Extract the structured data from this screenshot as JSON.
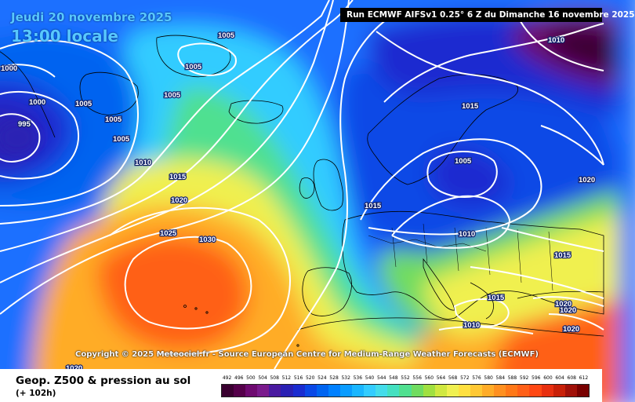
{
  "map": {
    "date_title": "Jeudi 20 novembre 2025",
    "time_title": "13:00 locale",
    "run_info": "Run ECMWF AIFSv1 0.25° 6 Z du Dimanche 16 novembre 2025",
    "copyright": "Copyright © 2025 Meteociel.fr - Source European Centre for Medium-Range Weather Forecasts (ECMWF)",
    "isobar_labels": [
      "1005",
      "1005",
      "1000",
      "1005",
      "1000",
      "1005",
      "995",
      "1005",
      "1005",
      "1010",
      "1015",
      "1020",
      "1025",
      "1030",
      "1010",
      "1015",
      "1005",
      "1015",
      "1010",
      "1020",
      "1015",
      "1015",
      "1020",
      "1020",
      "1010",
      "1020",
      "1020"
    ]
  },
  "footer": {
    "title": "Geop. Z500 & pression au sol",
    "subtitle": "(+ 102h)"
  },
  "legend": {
    "values": [
      "492",
      "496",
      "500",
      "504",
      "508",
      "512",
      "516",
      "520",
      "524",
      "528",
      "532",
      "536",
      "540",
      "544",
      "548",
      "552",
      "556",
      "560",
      "564",
      "568",
      "572",
      "576",
      "580",
      "584",
      "588",
      "592",
      "596",
      "600",
      "604",
      "608",
      "612"
    ],
    "colors": [
      "#3a0030",
      "#55004a",
      "#6e0a70",
      "#7a1a8c",
      "#4a1aa0",
      "#2a20b4",
      "#1a2cd0",
      "#0a48e6",
      "#0064f0",
      "#0080ff",
      "#0a9cff",
      "#1ab6ff",
      "#33ccff",
      "#44dcea",
      "#44e0c0",
      "#50e090",
      "#70dc60",
      "#a0e040",
      "#d0e840",
      "#f0f050",
      "#ffe040",
      "#ffc834",
      "#ffac28",
      "#ff9020",
      "#ff7818",
      "#ff6018",
      "#ff4814",
      "#e83010",
      "#c82008",
      "#a01008",
      "#780000"
    ]
  }
}
